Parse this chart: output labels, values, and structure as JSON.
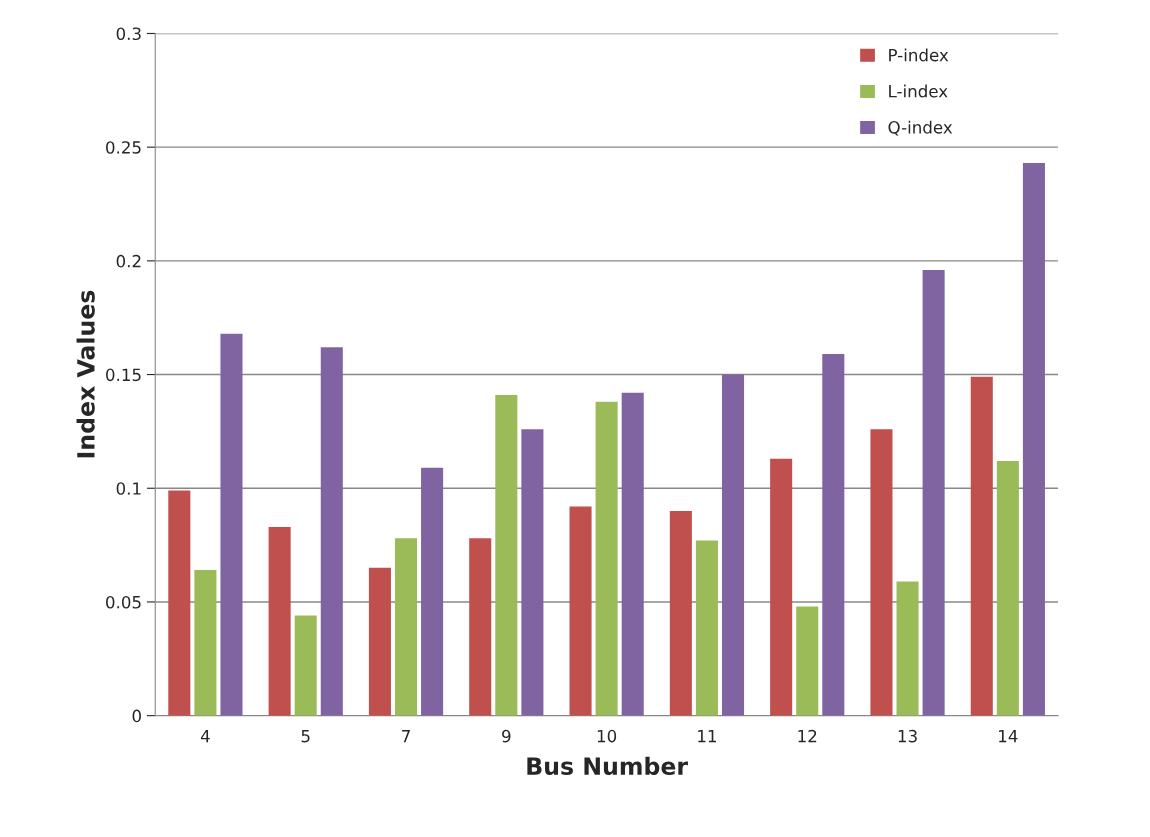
{
  "chart_data": {
    "type": "bar",
    "xlabel": "Bus Number",
    "ylabel": "Index Values",
    "categories": [
      "4",
      "5",
      "7",
      "9",
      "10",
      "11",
      "12",
      "13",
      "14"
    ],
    "series": [
      {
        "name": "P-index",
        "color": "#c0504d",
        "values": [
          0.099,
          0.083,
          0.065,
          0.078,
          0.092,
          0.09,
          0.113,
          0.126,
          0.149
        ]
      },
      {
        "name": "L-index",
        "color": "#9bbb59",
        "values": [
          0.064,
          0.044,
          0.078,
          0.141,
          0.138,
          0.077,
          0.048,
          0.059,
          0.112
        ]
      },
      {
        "name": "Q-index",
        "color": "#8064a2",
        "values": [
          0.168,
          0.162,
          0.109,
          0.126,
          0.142,
          0.15,
          0.159,
          0.196,
          0.243
        ]
      }
    ],
    "ylim": [
      0,
      0.3
    ],
    "yticks": [
      {
        "value": 0,
        "label": "0"
      },
      0.05,
      0.1,
      0.15,
      0.2,
      0.25,
      0.3
    ],
    "grid": "y",
    "legend": "top right"
  }
}
